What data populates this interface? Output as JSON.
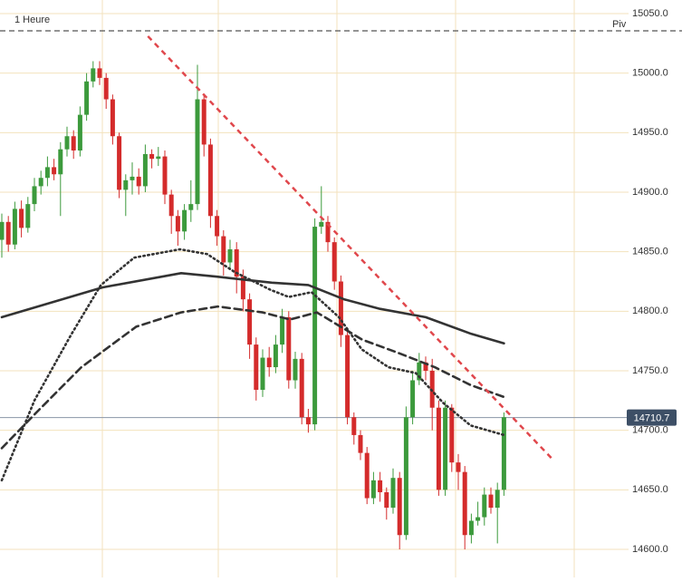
{
  "chart_data": {
    "type": "candlestick",
    "title": "1 Heure",
    "ylim": [
      14576.4,
      15061.4
    ],
    "yticks": [
      {
        "value": 14600,
        "label": "14600.0"
      },
      {
        "value": 14650,
        "label": "14650.0"
      },
      {
        "value": 14700,
        "label": "14700.0"
      },
      {
        "value": 14750,
        "label": "14750.0"
      },
      {
        "value": 14800,
        "label": "14800.0"
      },
      {
        "value": 14850,
        "label": "14850.0"
      },
      {
        "value": 14900,
        "label": "14900.0"
      },
      {
        "value": 14950,
        "label": "14950.0"
      },
      {
        "value": 15000,
        "label": "15000.0"
      },
      {
        "value": 15050,
        "label": "15050.0"
      }
    ],
    "grid": true,
    "up_color": "#3c9a3c",
    "down_color": "#d42b2b",
    "series": [
      {
        "open": [
          14860,
          14875,
          14856,
          14886,
          14870,
          14890,
          14905,
          14912,
          14921,
          14915,
          14936,
          14947,
          14935,
          14965,
          14993,
          15004,
          14996,
          14978,
          14947,
          14902,
          14910,
          14913,
          14905,
          14932,
          14928,
          14930,
          14898,
          14880,
          14867,
          14885,
          14890,
          14978,
          14940,
          14880,
          14863,
          14841,
          14852,
          14829,
          14810,
          14772,
          14734,
          14761,
          14753,
          14772,
          14795,
          14742,
          14760,
          14711,
          14705,
          14871,
          14875,
          14858,
          14825,
          14780,
          14711,
          14696,
          14681,
          14643,
          14658,
          14648,
          14635,
          14660,
          14612,
          14711,
          14742,
          14757,
          14750,
          14719,
          14650,
          14719,
          14673,
          14665,
          14612,
          14624,
          14627,
          14646,
          14635,
          14650
        ],
        "high": [
          14882,
          14880,
          14892,
          14893,
          14896,
          14912,
          14918,
          14930,
          14928,
          14942,
          14955,
          14952,
          14972,
          15000,
          15010,
          15010,
          15000,
          14982,
          14950,
          14915,
          14925,
          14920,
          14940,
          14936,
          14938,
          14935,
          14902,
          14885,
          14890,
          14910,
          15007,
          14982,
          14945,
          14885,
          14868,
          14860,
          14858,
          14835,
          14815,
          14778,
          14768,
          14770,
          14780,
          14802,
          14800,
          14766,
          14765,
          14718,
          14878,
          14905,
          14880,
          14862,
          14830,
          14785,
          14715,
          14700,
          14686,
          14665,
          14665,
          14652,
          14668,
          14665,
          14720,
          14750,
          14765,
          14762,
          14760,
          14725,
          14725,
          14722,
          14680,
          14670,
          14630,
          14640,
          14652,
          14652,
          14656,
          14715
        ],
        "low": [
          14845,
          14850,
          14852,
          14862,
          14866,
          14884,
          14898,
          14905,
          14910,
          14880,
          14930,
          14928,
          14930,
          14960,
          14988,
          14990,
          14970,
          14940,
          14895,
          14880,
          14898,
          14898,
          14900,
          14920,
          14922,
          14890,
          14865,
          14855,
          14860,
          14875,
          14885,
          14930,
          14870,
          14855,
          14830,
          14835,
          14815,
          14800,
          14760,
          14725,
          14728,
          14745,
          14748,
          14765,
          14735,
          14735,
          14705,
          14698,
          14700,
          14865,
          14850,
          14818,
          14770,
          14705,
          14688,
          14675,
          14638,
          14638,
          14640,
          14625,
          14630,
          14600,
          14608,
          14705,
          14738,
          14742,
          14700,
          14645,
          14645,
          14665,
          14650,
          14600,
          14605,
          14620,
          14620,
          14630,
          14605,
          14645
        ],
        "close": [
          14875,
          14856,
          14886,
          14870,
          14890,
          14905,
          14912,
          14921,
          14915,
          14936,
          14947,
          14935,
          14965,
          14993,
          15004,
          14996,
          14978,
          14947,
          14902,
          14910,
          14913,
          14905,
          14932,
          14928,
          14930,
          14898,
          14880,
          14867,
          14885,
          14890,
          14978,
          14940,
          14880,
          14863,
          14841,
          14852,
          14829,
          14810,
          14772,
          14734,
          14761,
          14753,
          14772,
          14795,
          14742,
          14760,
          14711,
          14705,
          14871,
          14875,
          14858,
          14825,
          14780,
          14711,
          14696,
          14681,
          14643,
          14658,
          14648,
          14635,
          14660,
          14612,
          14711,
          14742,
          14757,
          14750,
          14719,
          14650,
          14719,
          14673,
          14665,
          14612,
          14624,
          14627,
          14646,
          14635,
          14650,
          14711
        ]
      }
    ],
    "lines": [
      {
        "style": "solid",
        "color": "#333333",
        "x": [
          0,
          15.4,
          27.5,
          33,
          41.4,
          47,
          52.5,
          58,
          65,
          72,
          77
        ],
        "values": [
          14795,
          14820,
          14832,
          14829,
          14824,
          14822,
          14810,
          14802,
          14795,
          14781,
          14773
        ]
      },
      {
        "style": "dashed",
        "color": "#333333",
        "x": [
          0,
          5.3,
          12.2,
          20.6,
          27.5,
          33.1,
          40,
          44.2,
          48.3,
          55.3,
          60.8,
          66.4,
          71.9,
          77
        ],
        "values": [
          14685,
          14715,
          14753,
          14787,
          14799,
          14804,
          14799,
          14793,
          14799,
          14776,
          14765,
          14753,
          14738,
          14728
        ]
      },
      {
        "style": "dotted",
        "color": "#333333",
        "x": [
          0,
          5,
          10.6,
          15.2,
          20.3,
          27.3,
          31.5,
          35.7,
          41.2,
          44,
          47.5,
          51.7,
          55.2,
          59.3,
          63.5,
          67.7,
          71.9,
          77
        ],
        "values": [
          14658,
          14725,
          14780,
          14822,
          14845,
          14852,
          14848,
          14833,
          14818,
          14812,
          14816,
          14795,
          14768,
          14753,
          14748,
          14723,
          14704,
          14696
        ]
      }
    ],
    "trendline": {
      "color": "#e0474c",
      "x": [
        22.4,
        84.4
      ],
      "values": [
        15031,
        14676
      ]
    },
    "pivot": {
      "label": "Piv",
      "value": 15035.5
    },
    "last_price": 14710.7
  }
}
